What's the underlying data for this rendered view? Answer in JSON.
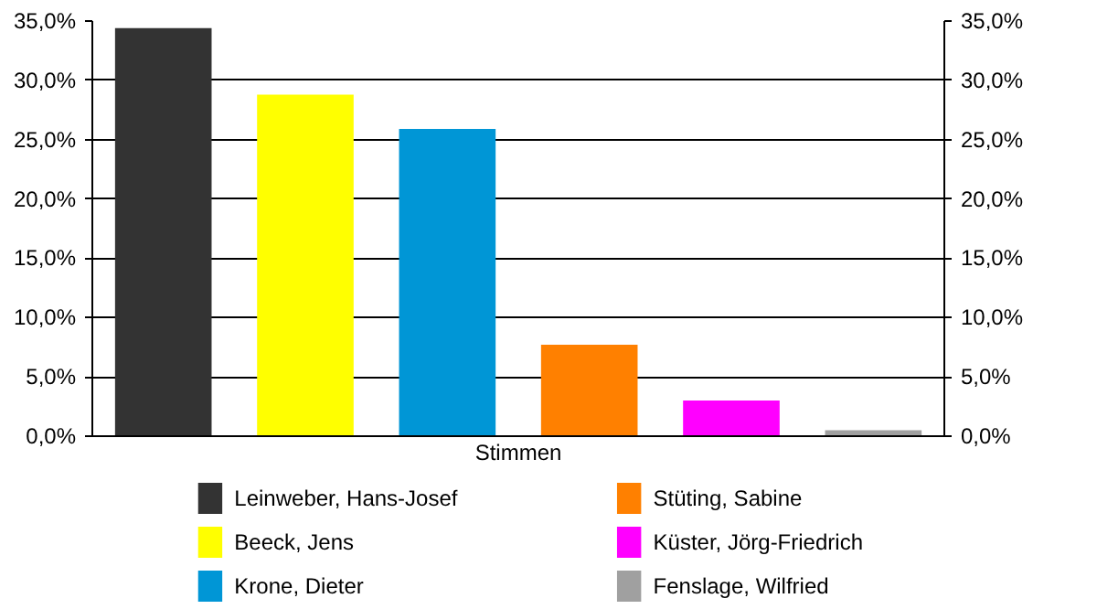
{
  "chart_data": {
    "type": "bar",
    "categories": [
      "Stimmen"
    ],
    "series": [
      {
        "name": "Leinweber, Hans-Josef",
        "color": "#333333",
        "values": [
          34.4
        ]
      },
      {
        "name": "Beeck, Jens",
        "color": "#ffff00",
        "values": [
          28.8
        ]
      },
      {
        "name": "Krone, Dieter",
        "color": "#0096d6",
        "values": [
          25.9
        ]
      },
      {
        "name": "Stüting, Sabine",
        "color": "#ff8000",
        "values": [
          7.7
        ]
      },
      {
        "name": "Küster, Jörg-Friedrich",
        "color": "#ff00ff",
        "values": [
          3.0
        ]
      },
      {
        "name": "Fenslage, Wilfried",
        "color": "#a0a0a0",
        "values": [
          0.5
        ]
      }
    ],
    "ylim": [
      0,
      35
    ],
    "yticks": [
      {
        "value": 0,
        "label": "0,0%"
      },
      {
        "value": 5,
        "label": "5,0%"
      },
      {
        "value": 10,
        "label": "10,0%"
      },
      {
        "value": 15,
        "label": "15,0%"
      },
      {
        "value": 20,
        "label": "20,0%"
      },
      {
        "value": 25,
        "label": "25,0%"
      },
      {
        "value": 30,
        "label": "30,0%"
      },
      {
        "value": 35,
        "label": "35,0%"
      }
    ],
    "grid": "y",
    "legend": "bottom"
  }
}
